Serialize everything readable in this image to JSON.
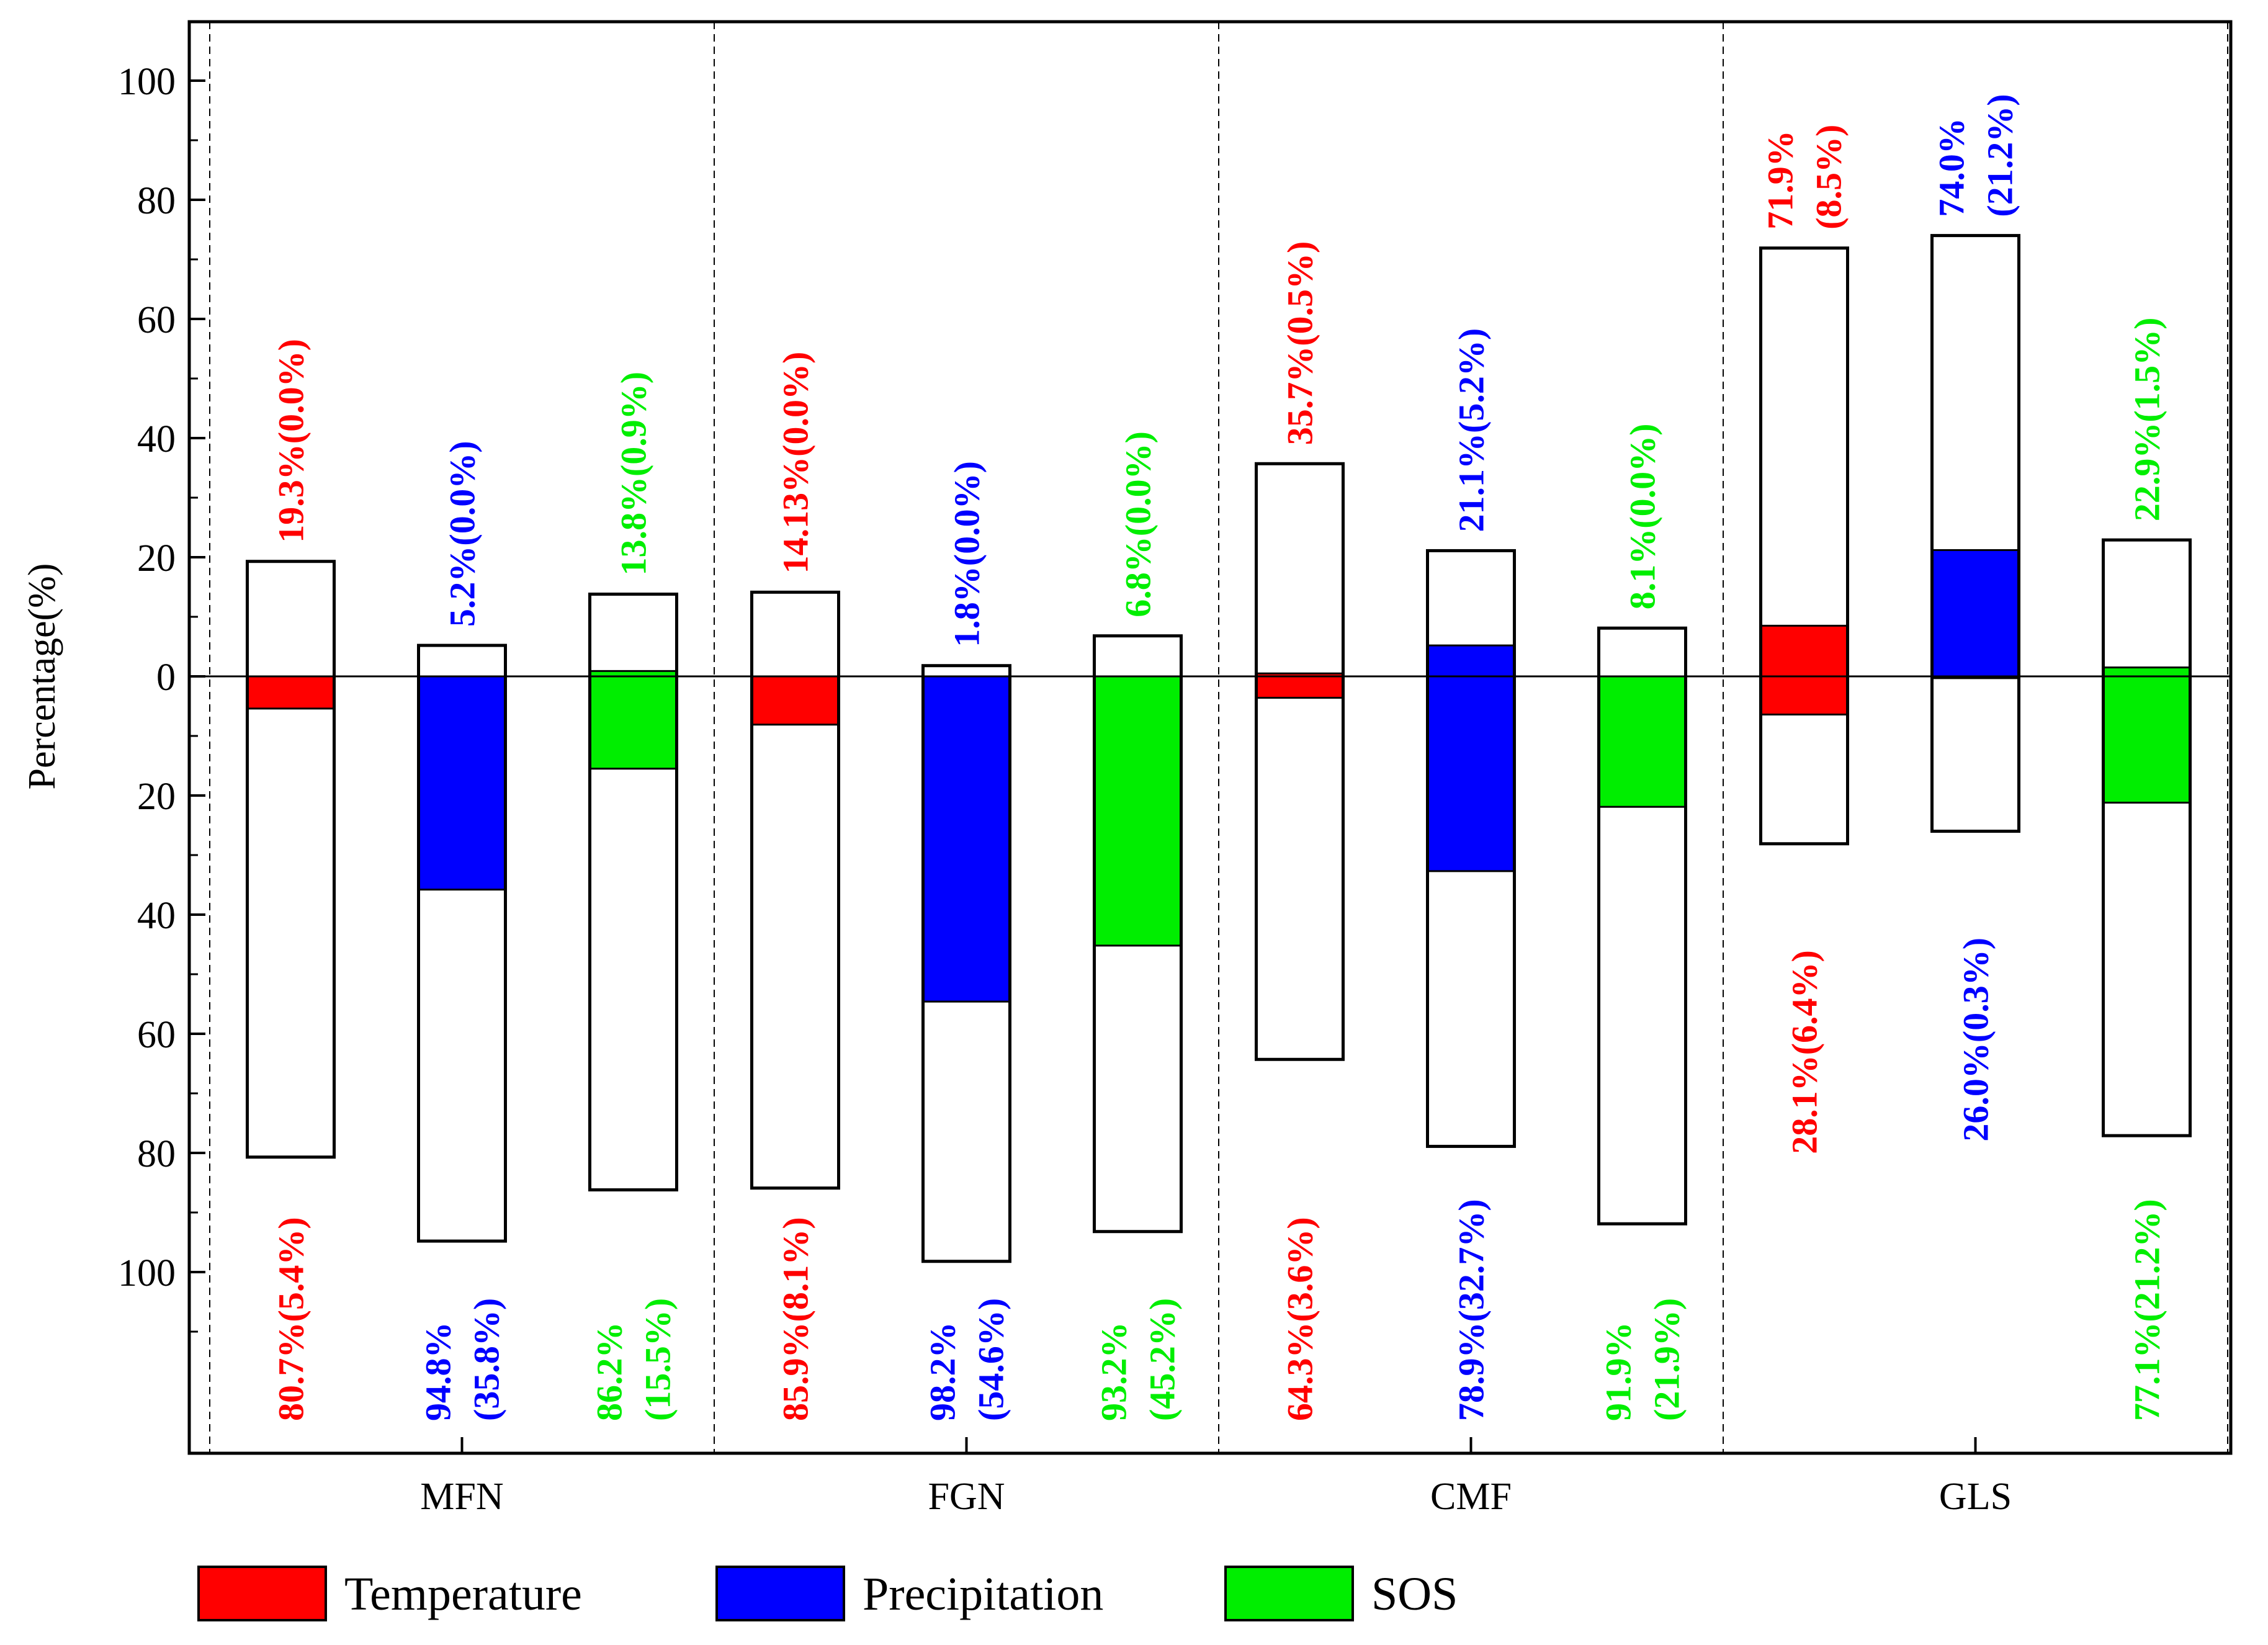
{
  "chart_data": {
    "type": "bar",
    "ylabel": "Percentage(%)",
    "ylim": [
      -130,
      110
    ],
    "y_ticks_positive": [
      0,
      20,
      40,
      60,
      80,
      100
    ],
    "y_ticks_negative": [
      20,
      40,
      60,
      80,
      100
    ],
    "y_tick_labels": [
      "100",
      "80",
      "60",
      "40",
      "20",
      "0",
      "20",
      "40",
      "60",
      "80",
      "100"
    ],
    "categories": [
      "MFN",
      "FGN",
      "CMF",
      "GLS"
    ],
    "legend": [
      {
        "name": "Temperature",
        "color": "#ff0000"
      },
      {
        "name": "Precipitation",
        "color": "#0000ff"
      },
      {
        "name": "SOS",
        "color": "#00ee00"
      }
    ],
    "series_colors": {
      "Temperature": "#ff0000",
      "Precipitation": "#0000ff",
      "SOS": "#00ee00"
    },
    "bars": [
      {
        "category": "MFN",
        "series": "Temperature",
        "pos_total": 19.3,
        "pos_sig": 0.0,
        "neg_total": 80.7,
        "neg_sig": 5.4,
        "top_label": [
          "19.3%(0.0%)"
        ],
        "bottom_label": [
          "80.7%(5.4%)"
        ]
      },
      {
        "category": "MFN",
        "series": "Precipitation",
        "pos_total": 5.2,
        "pos_sig": 0.0,
        "neg_total": 94.8,
        "neg_sig": 35.8,
        "top_label": [
          "5.2%(0.0%)"
        ],
        "bottom_label": [
          "94.8%",
          "(35.8%)"
        ]
      },
      {
        "category": "MFN",
        "series": "SOS",
        "pos_total": 13.8,
        "pos_sig": 0.9,
        "neg_total": 86.2,
        "neg_sig": 15.5,
        "top_label": [
          "13.8%(0.9%)"
        ],
        "bottom_label": [
          "86.2%",
          "(15.5%)"
        ]
      },
      {
        "category": "FGN",
        "series": "Temperature",
        "pos_total": 14.13,
        "pos_sig": 0.0,
        "neg_total": 85.9,
        "neg_sig": 8.1,
        "top_label": [
          "14.13%(0.0%)"
        ],
        "bottom_label": [
          "85.9%(8.1%)"
        ]
      },
      {
        "category": "FGN",
        "series": "Precipitation",
        "pos_total": 1.8,
        "pos_sig": 0.0,
        "neg_total": 98.2,
        "neg_sig": 54.6,
        "top_label": [
          "1.8%(0.0%)"
        ],
        "bottom_label": [
          "98.2%",
          "(54.6%)"
        ]
      },
      {
        "category": "FGN",
        "series": "SOS",
        "pos_total": 6.8,
        "pos_sig": 0.0,
        "neg_total": 93.2,
        "neg_sig": 45.2,
        "top_label": [
          "6.8%(0.0%)"
        ],
        "bottom_label": [
          "93.2%",
          "(45.2%)"
        ]
      },
      {
        "category": "CMF",
        "series": "Temperature",
        "pos_total": 35.7,
        "pos_sig": 0.5,
        "neg_total": 64.3,
        "neg_sig": 3.6,
        "top_label": [
          "35.7%(0.5%)"
        ],
        "bottom_label": [
          "64.3%(3.6%)"
        ]
      },
      {
        "category": "CMF",
        "series": "Precipitation",
        "pos_total": 21.1,
        "pos_sig": 5.2,
        "neg_total": 78.9,
        "neg_sig": 32.7,
        "top_label": [
          "21.1%(5.2%)"
        ],
        "bottom_label": [
          "78.9%(32.7%)"
        ]
      },
      {
        "category": "CMF",
        "series": "SOS",
        "pos_total": 8.1,
        "pos_sig": 0.0,
        "neg_total": 91.9,
        "neg_sig": 21.9,
        "top_label": [
          "8.1%(0.0%)"
        ],
        "bottom_label": [
          "91.9%",
          "(21.9%)"
        ]
      },
      {
        "category": "GLS",
        "series": "Temperature",
        "pos_total": 71.9,
        "pos_sig": 8.5,
        "neg_total": 28.1,
        "neg_sig": 6.4,
        "top_label": [
          "71.9%",
          "(8.5%)"
        ],
        "bottom_label": [
          "28.1%(6.4%)"
        ]
      },
      {
        "category": "GLS",
        "series": "Precipitation",
        "pos_total": 74.0,
        "pos_sig": 21.2,
        "neg_total": 26.0,
        "neg_sig": 0.3,
        "top_label": [
          "74.0%",
          "(21.2%)"
        ],
        "bottom_label": [
          "26.0%(0.3%)"
        ]
      },
      {
        "category": "GLS",
        "series": "SOS",
        "pos_total": 22.9,
        "pos_sig": 1.5,
        "neg_total": 77.1,
        "neg_sig": 21.2,
        "top_label": [
          "22.9%(1.5%)"
        ],
        "bottom_label": [
          "77.1%(21.2%)"
        ]
      }
    ]
  }
}
